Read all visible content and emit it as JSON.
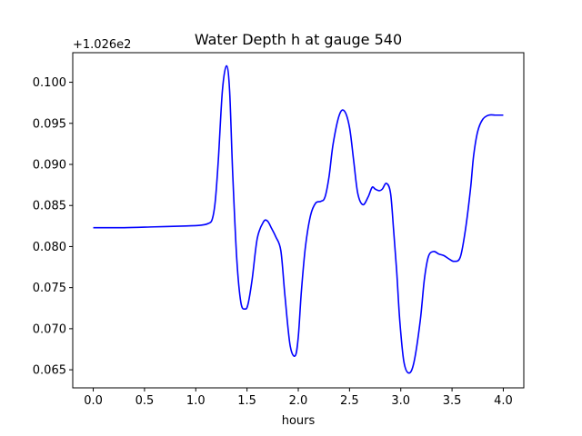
{
  "chart_data": {
    "type": "line",
    "title": "Water Depth h at gauge 540",
    "xlabel": "hours",
    "ylabel": "",
    "offset_label": "+1.026e2",
    "xlim": [
      -0.2,
      4.2
    ],
    "ylim": [
      0.0628,
      0.1036
    ],
    "xticks": [
      0.0,
      0.5,
      1.0,
      1.5,
      2.0,
      2.5,
      3.0,
      3.5,
      4.0
    ],
    "xtick_labels": [
      "0.0",
      "0.5",
      "1.0",
      "1.5",
      "2.0",
      "2.5",
      "3.0",
      "3.5",
      "4.0"
    ],
    "yticks": [
      0.065,
      0.07,
      0.075,
      0.08,
      0.085,
      0.09,
      0.095,
      0.1
    ],
    "ytick_labels": [
      "0.065",
      "0.070",
      "0.075",
      "0.080",
      "0.085",
      "0.090",
      "0.095",
      "0.100"
    ],
    "grid": false,
    "series": [
      {
        "color": "#0000ff",
        "x": [
          0.0,
          0.3,
          0.6,
          0.9,
          1.05,
          1.12,
          1.16,
          1.19,
          1.22,
          1.26,
          1.3,
          1.33,
          1.36,
          1.4,
          1.44,
          1.48,
          1.51,
          1.55,
          1.6,
          1.66,
          1.7,
          1.74,
          1.78,
          1.83,
          1.87,
          1.92,
          1.97,
          2.0,
          2.03,
          2.07,
          2.12,
          2.17,
          2.22,
          2.26,
          2.3,
          2.34,
          2.4,
          2.45,
          2.5,
          2.54,
          2.58,
          2.63,
          2.68,
          2.72,
          2.75,
          2.79,
          2.82,
          2.86,
          2.9,
          2.93,
          2.96,
          2.99,
          3.03,
          3.08,
          3.13,
          3.19,
          3.23,
          3.27,
          3.32,
          3.37,
          3.42,
          3.47,
          3.52,
          3.58,
          3.63,
          3.68,
          3.71,
          3.75,
          3.8,
          3.86,
          3.92,
          3.97,
          4.0
        ],
        "y": [
          0.0823,
          0.0823,
          0.0824,
          0.0825,
          0.0826,
          0.0828,
          0.0833,
          0.0855,
          0.0905,
          0.099,
          0.102,
          0.099,
          0.089,
          0.0785,
          0.0732,
          0.0724,
          0.073,
          0.076,
          0.081,
          0.083,
          0.0831,
          0.0822,
          0.0812,
          0.0795,
          0.074,
          0.068,
          0.0667,
          0.069,
          0.0745,
          0.08,
          0.0838,
          0.0853,
          0.0855,
          0.086,
          0.0885,
          0.0925,
          0.096,
          0.0965,
          0.0945,
          0.0905,
          0.0865,
          0.0851,
          0.086,
          0.0872,
          0.087,
          0.0868,
          0.087,
          0.0877,
          0.0865,
          0.082,
          0.077,
          0.071,
          0.066,
          0.0646,
          0.066,
          0.071,
          0.076,
          0.0788,
          0.0794,
          0.0791,
          0.0789,
          0.0785,
          0.0782,
          0.0787,
          0.082,
          0.087,
          0.091,
          0.094,
          0.0955,
          0.096,
          0.096,
          0.096,
          0.096
        ]
      }
    ]
  }
}
